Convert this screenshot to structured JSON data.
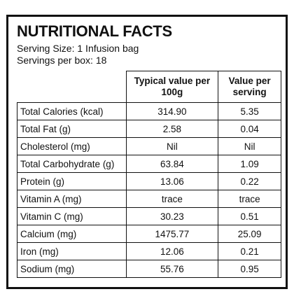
{
  "header": {
    "title": "NUTRITIONAL FACTS",
    "serving_size": "Serving Size: 1 Infusion bag",
    "servings_per_box": "Servings per box: 18"
  },
  "table": {
    "columns": [
      "Typical value per 100g",
      "Value per serving"
    ],
    "rows": [
      [
        "Total Calories (kcal)",
        "314.90",
        "5.35"
      ],
      [
        "Total Fat (g)",
        "2.58",
        "0.04"
      ],
      [
        "Cholesterol (mg)",
        "Nil",
        "Nil"
      ],
      [
        "Total Carbohydrate (g)",
        "63.84",
        "1.09"
      ],
      [
        "Protein (g)",
        "13.06",
        "0.22"
      ],
      [
        "Vitamin A (mg)",
        "trace",
        "trace"
      ],
      [
        "Vitamin C (mg)",
        "30.23",
        "0.51"
      ],
      [
        "Calcium (mg)",
        "1475.77",
        "25.09"
      ],
      [
        "Iron (mg)",
        "12.06",
        "0.21"
      ],
      [
        "Sodium (mg)",
        "55.76",
        "0.95"
      ]
    ]
  }
}
